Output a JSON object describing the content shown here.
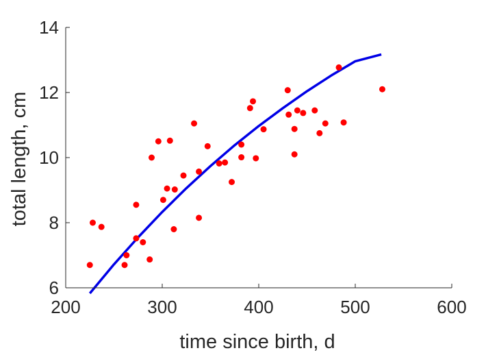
{
  "chart_data": {
    "type": "scatter",
    "title": "",
    "xlabel": "time since birth, d",
    "ylabel": "total length, cm",
    "xlim": [
      200,
      600
    ],
    "ylim": [
      6,
      14
    ],
    "xticks": [
      200,
      300,
      400,
      500,
      600
    ],
    "yticks": [
      6,
      8,
      10,
      12,
      14
    ],
    "grid": false,
    "colors": {
      "points": "#ff0000",
      "curve": "#0000e6",
      "axis": "#262626"
    },
    "series": [
      {
        "kind": "scatter",
        "points": [
          [
            225,
            6.7
          ],
          [
            228,
            8.0
          ],
          [
            237,
            7.87
          ],
          [
            261,
            6.7
          ],
          [
            263,
            7.0
          ],
          [
            273,
            8.55
          ],
          [
            273,
            7.52
          ],
          [
            280,
            7.4
          ],
          [
            287,
            6.87
          ],
          [
            289,
            10.0
          ],
          [
            296,
            10.5
          ],
          [
            301,
            8.7
          ],
          [
            305,
            9.05
          ],
          [
            308,
            10.52
          ],
          [
            312,
            7.8
          ],
          [
            313,
            9.02
          ],
          [
            322,
            9.45
          ],
          [
            333,
            11.05
          ],
          [
            338,
            8.15
          ],
          [
            338,
            9.57
          ],
          [
            347,
            10.35
          ],
          [
            359,
            9.82
          ],
          [
            365,
            9.85
          ],
          [
            372,
            9.25
          ],
          [
            382,
            10.4
          ],
          [
            382,
            10.01
          ],
          [
            391,
            11.52
          ],
          [
            394,
            11.73
          ],
          [
            397,
            9.98
          ],
          [
            405,
            10.87
          ],
          [
            430,
            12.07
          ],
          [
            431,
            11.32
          ],
          [
            437,
            10.88
          ],
          [
            437,
            10.1
          ],
          [
            440,
            11.45
          ],
          [
            446,
            11.37
          ],
          [
            458,
            11.45
          ],
          [
            463,
            10.75
          ],
          [
            469,
            11.05
          ],
          [
            483,
            12.77
          ],
          [
            488,
            11.08
          ],
          [
            528,
            12.1
          ]
        ]
      },
      {
        "kind": "line",
        "points": [
          [
            225,
            5.83
          ],
          [
            250,
            6.72
          ],
          [
            275,
            7.55
          ],
          [
            300,
            8.33
          ],
          [
            325,
            9.06
          ],
          [
            350,
            9.74
          ],
          [
            375,
            10.38
          ],
          [
            400,
            10.97
          ],
          [
            425,
            11.52
          ],
          [
            450,
            12.04
          ],
          [
            475,
            12.52
          ],
          [
            500,
            12.96
          ],
          [
            527,
            13.17
          ]
        ]
      }
    ]
  }
}
